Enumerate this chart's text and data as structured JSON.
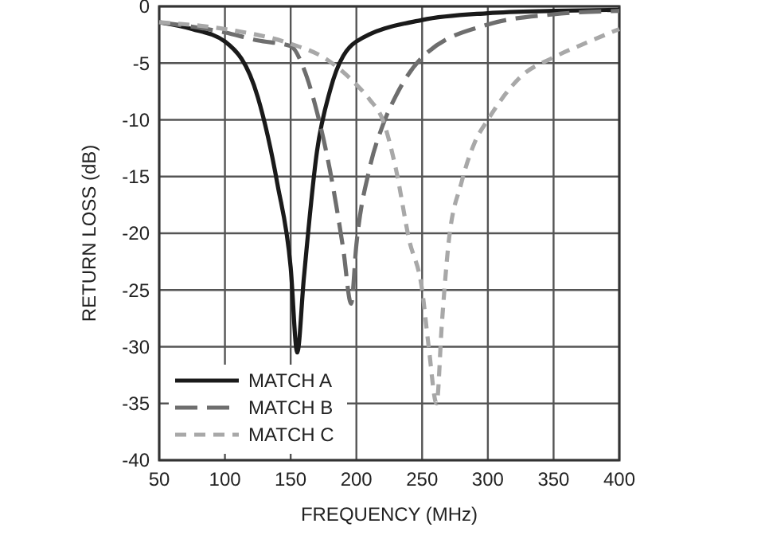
{
  "chart_data": {
    "type": "line",
    "xlabel": "FREQUENCY (MHz)",
    "ylabel": "RETURN LOSS (dB)",
    "xlim": [
      50,
      400
    ],
    "ylim": [
      -40,
      0
    ],
    "xticks": [
      50,
      100,
      150,
      200,
      250,
      300,
      350,
      400
    ],
    "yticks": [
      0,
      -5,
      -10,
      -15,
      -20,
      -25,
      -30,
      -35,
      -40
    ],
    "grid": true,
    "legend": "bottom left",
    "series": [
      {
        "name": "MATCH A",
        "color": "#1a1a1a",
        "line_style": "solid",
        "x": [
          50,
          75,
          100,
          125,
          140,
          150,
          155,
          160,
          170,
          180,
          200,
          250,
          300,
          350,
          400
        ],
        "values": [
          -1.4,
          -2,
          -3.1,
          -8,
          -15.7,
          -23,
          -30.5,
          -24,
          -12.8,
          -7.4,
          -3.1,
          -1.2,
          -0.6,
          -0.4,
          -0.3
        ]
      },
      {
        "name": "MATCH B",
        "color": "#6e6e6e",
        "line_style": "dashed",
        "x": [
          50,
          100,
          125,
          150,
          160,
          170,
          180,
          190,
          196,
          200,
          210,
          220,
          230,
          250,
          300,
          350,
          400
        ],
        "values": [
          -1.4,
          -2.3,
          -3,
          -3.5,
          -5.5,
          -9.3,
          -14.5,
          -21.4,
          -26.2,
          -21,
          -14.3,
          -10.5,
          -7.9,
          -4.5,
          -1.6,
          -0.7,
          -0.4
        ]
      },
      {
        "name": "MATCH C",
        "color": "#a8a8a8",
        "line_style": "dotted",
        "x": [
          50,
          100,
          150,
          175,
          200,
          210,
          220,
          230,
          240,
          250,
          255,
          261,
          265,
          270,
          280,
          290,
          300,
          325,
          350,
          375,
          400
        ],
        "values": [
          -1.4,
          -2,
          -3.3,
          -4.5,
          -6.9,
          -8.2,
          -10,
          -14.3,
          -20.5,
          -25,
          -30,
          -35,
          -28,
          -21,
          -15.5,
          -12,
          -10,
          -6.2,
          -4.5,
          -3.2,
          -2
        ]
      }
    ]
  }
}
